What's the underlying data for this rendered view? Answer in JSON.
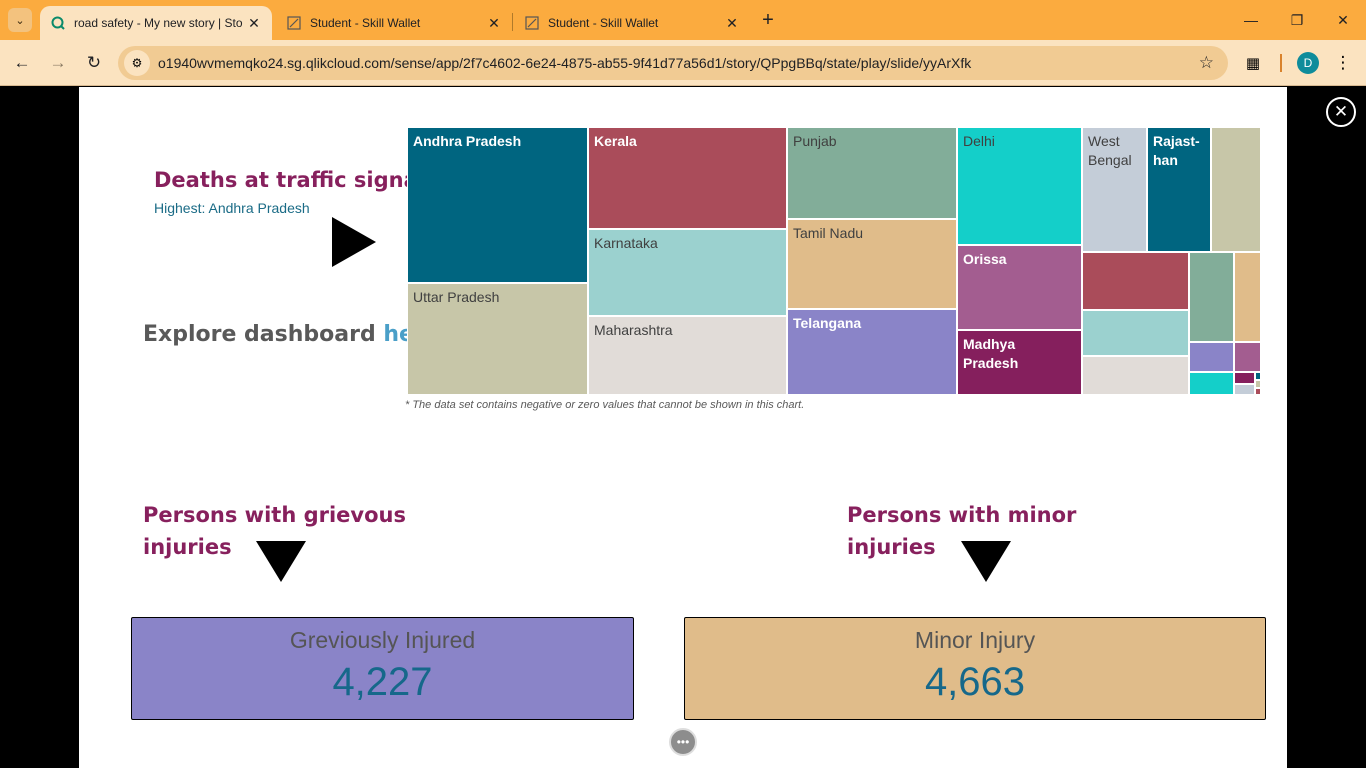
{
  "browser": {
    "tabs": [
      {
        "title": "road safety - My new story | Sto",
        "active": true
      },
      {
        "title": "Student - Skill Wallet",
        "active": false
      },
      {
        "title": "Student - Skill Wallet",
        "active": false
      }
    ],
    "url": "o1940wvmemqko24.sg.qlikcloud.com/sense/app/2f7c4602-6e24-4875-ab55-9f41d77a56d1/story/QPpgBBq/state/play/slide/yyArXfk",
    "profile_initial": "D"
  },
  "slide": {
    "deaths": {
      "title": "Deaths at traffic signal",
      "subtitle": "Highest: Andhra Pradesh"
    },
    "explore": {
      "prefix": "Explore dashboard",
      "link": "here"
    },
    "treemap": {
      "labels": {
        "andhra": "Andhra Pradesh",
        "uttar": "Uttar Pradesh",
        "kerala": "Kerala",
        "karnataka": "Karnataka",
        "maharashtra": "Maharashtra",
        "punjab": "Punjab",
        "tamil": "Tamil Nadu",
        "telangana": "Telangana",
        "delhi": "Delhi",
        "orissa": "Orissa",
        "madhya": "Madhya Pradesh",
        "westbengal": "West Bengal",
        "rajasthan": "Rajast-han"
      },
      "footnote": "* The data set contains negative or zero values that cannot be shown in this chart.",
      "colors": {
        "teal_dark": "#006580",
        "red": "#aa4c5a",
        "sage": "#82ad99",
        "cyan": "#14cfc9",
        "grey_blue": "#c4cdd8",
        "olive": "#c7c6a8",
        "light_teal": "#9bd1cf",
        "tan": "#e0bc8a",
        "light_grey": "#e1dcd8",
        "lavender": "#8a84c8",
        "mauve": "#a35d90",
        "plum": "#851f5d"
      }
    },
    "grievous": {
      "title": "Persons with grievous injuries",
      "kpi_label": "Greviously Injured",
      "kpi_value": "4,227",
      "color": "#8a84c8"
    },
    "minor": {
      "title": "Persons with minor injuries",
      "kpi_label": "Minor Injury",
      "kpi_value": "4,663",
      "color": "#e0bc8a"
    }
  }
}
